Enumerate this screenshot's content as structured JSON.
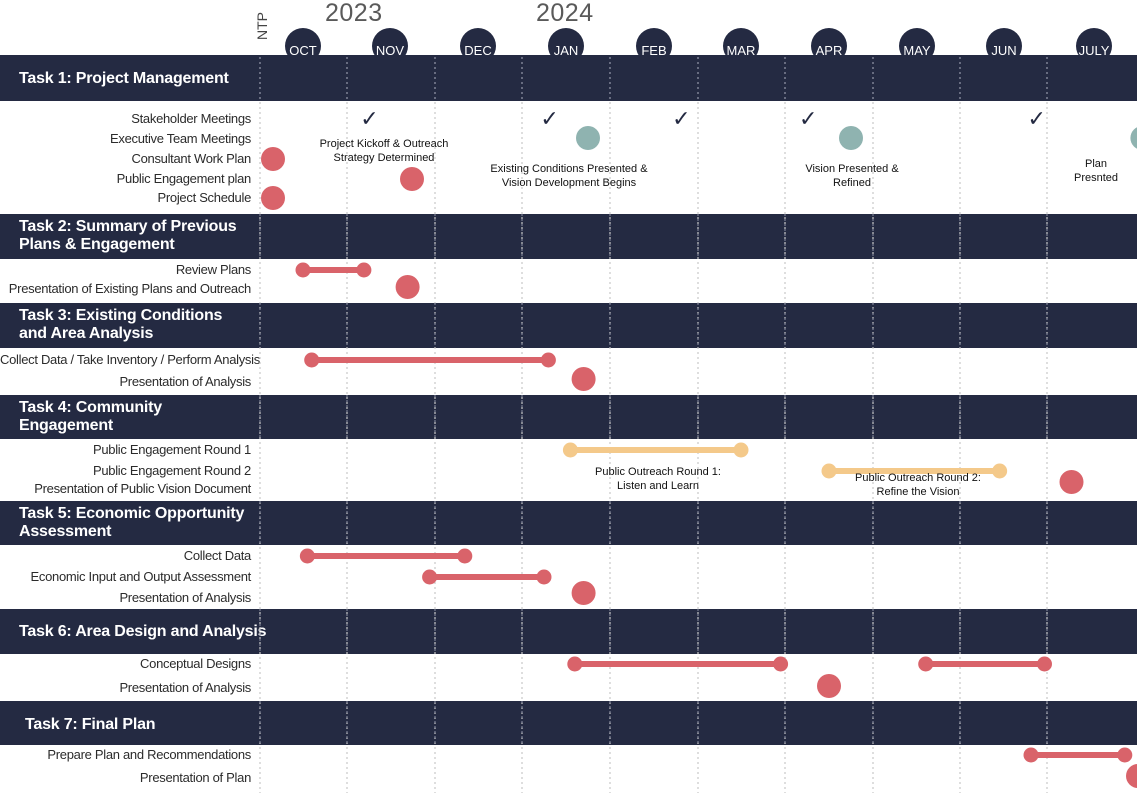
{
  "header": {
    "ntp_label": "NTP",
    "years": [
      "2023",
      "2024"
    ],
    "months": [
      "OCT",
      "NOV",
      "DEC",
      "JAN",
      "FEB",
      "MAR",
      "APR",
      "MAY",
      "JUN",
      "JULY"
    ]
  },
  "colors": {
    "band": "#242a42",
    "task_bar": "#d9636a",
    "outreach_bar": "#f4c98a",
    "milestone_teal": "#8fb3b0",
    "check": "#242a42"
  },
  "tasks": [
    {
      "title": "Task 1:  Project Management",
      "rows": [
        "Stakeholder Meetings",
        "Executive Team Meetings",
        "Consultant Work Plan",
        "Public Engagement plan",
        "Project Schedule"
      ]
    },
    {
      "title": "Task 2: Summary of Previous\nPlans & Engagement",
      "rows": [
        "Review Plans",
        "Presentation of Existing Plans and Outreach"
      ]
    },
    {
      "title": "Task 3: Existing Conditions\n and Area Analysis",
      "rows": [
        "Collect Data / Take Inventory / Perform Analysis",
        "Presentation of Analysis"
      ]
    },
    {
      "title": "Task 4: Community\nEngagement",
      "rows": [
        "Public Engagement Round 1",
        "Public Engagement Round 2",
        "Presentation of Public Vision Document"
      ]
    },
    {
      "title": "Task 5: Economic Opportunity\nAssessment",
      "rows": [
        "Collect Data",
        "Economic Input and Output Assessment",
        "Presentation of Analysis"
      ]
    },
    {
      "title": "Task 6: Area Design and Analysis",
      "rows": [
        "Conceptual Designs",
        "Presentation of Analysis"
      ]
    },
    {
      "title": " Task 7: Final Plan",
      "rows": [
        "Prepare Plan and Recommendations",
        "Presentation of Plan"
      ]
    }
  ],
  "annotations": [
    "Project Kickoff & Outreach\nStrategy Determined",
    "Existing Conditions Presented &\nVision Development Begins",
    "Vision Presented &\nRefined",
    "Plan\nPresnted",
    "Public Outreach Round 1:\nListen and Learn",
    "Public Outreach Round 2:\nRefine the Vision"
  ],
  "chart_data": {
    "type": "gantt",
    "x_unit": "month index (0 = OCT 2023, 9 = JULY 2024)",
    "bars": [
      {
        "task": "Task 2",
        "row": "Review Plans",
        "start": 0.0,
        "end": 0.7,
        "color": "task_bar"
      },
      {
        "task": "Task 3",
        "row": "Collect Data / Take Inventory / Perform Analysis",
        "start": 0.1,
        "end": 2.8,
        "color": "task_bar"
      },
      {
        "task": "Task 4",
        "row": "Public Engagement Round 1",
        "start": 3.05,
        "end": 5.0,
        "color": "outreach_bar"
      },
      {
        "task": "Task 4",
        "row": "Public Engagement Round 2",
        "start": 6.0,
        "end": 7.95,
        "color": "outreach_bar"
      },
      {
        "task": "Task 5",
        "row": "Collect Data",
        "start": 0.05,
        "end": 1.85,
        "color": "task_bar"
      },
      {
        "task": "Task 5",
        "row": "Economic Input and Output Assessment",
        "start": 1.45,
        "end": 2.75,
        "color": "task_bar"
      },
      {
        "task": "Task 6",
        "row": "Conceptual Designs",
        "start": 3.1,
        "end": 5.45,
        "color": "task_bar"
      },
      {
        "task": "Task 6",
        "row": "Conceptual Designs",
        "start": 7.1,
        "end": 8.45,
        "color": "task_bar"
      },
      {
        "task": "Task 7",
        "row": "Prepare Plan and Recommendations",
        "start": 8.3,
        "end": 9.35,
        "color": "task_bar"
      }
    ],
    "milestones": [
      {
        "row": "Consultant Work Plan",
        "at": 0.0,
        "kind": "dot",
        "color": "task_bar"
      },
      {
        "row": "Public Engagement plan",
        "at": 1.25,
        "kind": "dot",
        "color": "task_bar"
      },
      {
        "row": "Project Schedule",
        "at": 0.0,
        "kind": "dot",
        "color": "task_bar"
      },
      {
        "row": "Presentation of Existing Plans and Outreach",
        "at": 1.2,
        "kind": "dot",
        "color": "task_bar"
      },
      {
        "row": "Presentation of Analysis (Task 3)",
        "at": 3.2,
        "kind": "dot",
        "color": "task_bar"
      },
      {
        "row": "Presentation of Public Vision Document",
        "at": 8.75,
        "kind": "dot",
        "color": "task_bar"
      },
      {
        "row": "Presentation of Analysis (Task 5)",
        "at": 3.2,
        "kind": "dot",
        "color": "task_bar"
      },
      {
        "row": "Presentation of Analysis (Task 6)",
        "at": 6.0,
        "kind": "dot",
        "color": "task_bar"
      },
      {
        "row": "Presentation of Plan",
        "at": 9.5,
        "kind": "dot",
        "color": "task_bar"
      },
      {
        "row": "Executive Team Meetings",
        "at": 3.25,
        "kind": "dot",
        "color": "milestone_teal"
      },
      {
        "row": "Executive Team Meetings",
        "at": 6.25,
        "kind": "dot",
        "color": "milestone_teal"
      },
      {
        "row": "Executive Team Meetings",
        "at": 9.55,
        "kind": "dot",
        "color": "milestone_teal"
      },
      {
        "row": "Stakeholder Meetings",
        "at": 0.75,
        "kind": "check"
      },
      {
        "row": "Stakeholder Meetings",
        "at": 2.8,
        "kind": "check"
      },
      {
        "row": "Stakeholder Meetings",
        "at": 4.3,
        "kind": "check"
      },
      {
        "row": "Stakeholder Meetings",
        "at": 5.75,
        "kind": "check"
      },
      {
        "row": "Stakeholder Meetings",
        "at": 8.35,
        "kind": "check"
      }
    ]
  }
}
